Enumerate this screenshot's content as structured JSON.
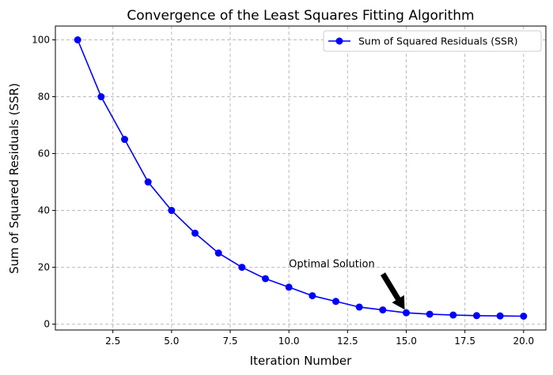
{
  "chart_data": {
    "type": "line",
    "title": "Convergence of the Least Squares Fitting Algorithm",
    "xlabel": "Iteration Number",
    "ylabel": "Sum of Squared Residuals (SSR)",
    "x": [
      1,
      2,
      3,
      4,
      5,
      6,
      7,
      8,
      9,
      10,
      11,
      12,
      13,
      14,
      15,
      16,
      17,
      18,
      19,
      20
    ],
    "series": [
      {
        "name": "Sum of Squared Residuals (SSR)",
        "color": "#0000ff",
        "marker": "circle",
        "values": [
          100,
          80,
          65,
          50,
          40,
          32,
          25,
          20,
          16,
          13,
          10,
          8,
          6,
          5,
          4,
          3.5,
          3.2,
          3,
          2.9,
          2.8
        ]
      }
    ],
    "xlim": [
      0.05,
      20.95
    ],
    "ylim": [
      -2.06,
      104.86
    ],
    "xticks": [
      "2.5",
      "5.0",
      "7.5",
      "10.0",
      "12.5",
      "15.0",
      "17.5",
      "20.0"
    ],
    "yticks": [
      "0",
      "20",
      "40",
      "60",
      "80",
      "100"
    ],
    "grid": true,
    "legend": "top-right",
    "annotation": {
      "text": "Optimal Solution",
      "text_at": [
        10,
        20
      ],
      "arrow_to": [
        15,
        4
      ]
    }
  }
}
